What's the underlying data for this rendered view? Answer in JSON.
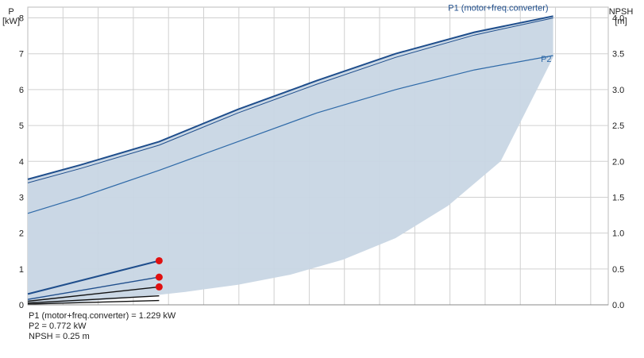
{
  "chart_data": {
    "type": "line",
    "left_axis": {
      "label_top": "P",
      "label_unit": "[kW]",
      "ylim": [
        0,
        8.3
      ],
      "ticks": [
        0,
        1,
        2,
        3,
        4,
        5,
        6,
        7,
        8
      ]
    },
    "right_axis": {
      "label_top": "NPSH",
      "label_unit": "[m]",
      "ylim": [
        0,
        4.15
      ],
      "ticks": [
        "0.0",
        "0.5",
        "1.0",
        "1.5",
        "2.0",
        "2.5",
        "3.0",
        "3.5",
        "4.0"
      ]
    },
    "xlim": [
      0,
      100
    ],
    "grid": true,
    "colors": {
      "p1": "#1f4e8c",
      "p2": "#2f6aa8",
      "band": "#c8d6e4",
      "band_light": "#e3ecf5",
      "grid": "#d0d0d0",
      "marker": "#e01010",
      "npsh": "#111111"
    },
    "series": [
      {
        "name": "P1 (motor+freq.converter)",
        "axis": "left",
        "x": [
          0,
          10,
          25,
          40,
          55,
          70,
          85,
          100
        ],
        "y": [
          3.5,
          3.9,
          4.55,
          5.45,
          6.25,
          7.0,
          7.6,
          8.05
        ],
        "lower": [
          3.4,
          3.8,
          4.45,
          5.35,
          6.15,
          6.9,
          7.52,
          8.0
        ]
      },
      {
        "name": "P2",
        "axis": "left",
        "x": [
          0,
          10,
          25,
          40,
          55,
          70,
          85,
          100
        ],
        "y": [
          2.55,
          3.0,
          3.75,
          4.55,
          5.35,
          6.0,
          6.55,
          6.95
        ]
      },
      {
        "name": "",
        "axis": "right",
        "x": [
          0,
          10,
          20,
          30,
          40,
          50,
          60,
          70,
          80,
          90,
          100
        ],
        "y": [
          0.01,
          0.04,
          0.1,
          0.18,
          0.28,
          0.42,
          0.63,
          0.93,
          1.38,
          2.0,
          3.45
        ]
      }
    ],
    "operating_curves": [
      {
        "x": [
          0,
          25
        ],
        "y": [
          0.3,
          1.229
        ]
      },
      {
        "x": [
          0,
          25
        ],
        "y": [
          0.15,
          0.772
        ]
      },
      {
        "x": [
          0,
          25
        ],
        "y": [
          0.1,
          0.5
        ]
      },
      {
        "x": [
          0,
          25
        ],
        "y": [
          0.05,
          0.25
        ]
      },
      {
        "x": [
          0,
          25
        ],
        "y": [
          0.02,
          0.12
        ]
      }
    ],
    "markers": [
      {
        "x": 25,
        "y": 1.229
      },
      {
        "x": 25,
        "y": 0.772
      },
      {
        "x": 25,
        "y": 0.5
      }
    ]
  },
  "readout": {
    "p1": "P1 (motor+freq.converter) = 1.229 kW",
    "p2": "P2 = 0.772 kW",
    "npsh": "NPSH = 0.25 m"
  }
}
